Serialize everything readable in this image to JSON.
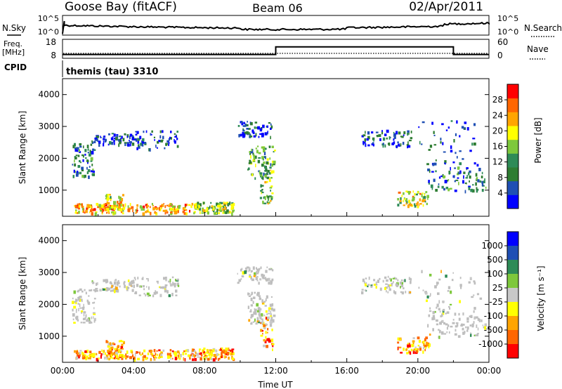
{
  "header": {
    "station": "Goose Bay (fitACF)",
    "beam": "Beam 06",
    "date": "02/Apr/2011"
  },
  "strips": {
    "nsky": {
      "label": "N.Sky",
      "right_label": "N.Search",
      "left_ticks": [
        "10^5",
        "10^0"
      ],
      "right_ticks": [
        "10^5",
        "10^0"
      ]
    },
    "freq": {
      "label": "Freq.",
      "unit": "[MHz]",
      "right_label": "Nave",
      "left_ticks": [
        "18",
        "8"
      ],
      "right_ticks": [
        "60",
        "0"
      ]
    },
    "cpid": {
      "label": "CPID",
      "value": "themis (tau) 3310"
    }
  },
  "colors": {
    "power_scale": [
      "#0000ff",
      "#1f4fb4",
      "#2e7d32",
      "#2e8b57",
      "#7ec83c",
      "#ffff00",
      "#ffa500",
      "#ff6600",
      "#ff0000"
    ],
    "velocity_scale": [
      "#0000ff",
      "#1f4fb4",
      "#2e8b57",
      "#7ec83c",
      "#c8c8c8",
      "#ffff00",
      "#ffa500",
      "#ff6600",
      "#ff0000"
    ],
    "ground_scatter": "#bebebe"
  },
  "chart_data": [
    {
      "type": "heatmap",
      "name": "power",
      "ylabel": "Slant Range [km]",
      "yticks": [
        1000,
        2000,
        3000,
        4000
      ],
      "ylim": [
        180,
        4500
      ],
      "xlim": [
        "00:00",
        "24:00"
      ],
      "colorbar_label": "Power [dB]",
      "colorbar_ticks": [
        4,
        8,
        12,
        16,
        20,
        24,
        28
      ],
      "colorbar_range": [
        0,
        32
      ]
    },
    {
      "type": "heatmap",
      "name": "velocity",
      "ylabel": "Slant Range [km]",
      "yticks": [
        1000,
        2000,
        3000,
        4000
      ],
      "ylim": [
        180,
        4500
      ],
      "xlim": [
        "00:00",
        "24:00"
      ],
      "xticks": [
        "00:00",
        "04:00",
        "08:00",
        "12:00",
        "16:00",
        "20:00",
        "00:00"
      ],
      "xlabel": "Time UT",
      "colorbar_label": "Velocity [m s⁻¹]",
      "colorbar_ticks": [
        1000,
        500,
        100,
        25,
        -25,
        -100,
        -500,
        -1000
      ]
    }
  ],
  "frequency_trace": [
    {
      "t": 0,
      "freq": 10
    },
    {
      "t": 12,
      "freq": 10
    },
    {
      "t": 12,
      "freq": 14
    },
    {
      "t": 22,
      "freq": 14
    },
    {
      "t": 22,
      "freq": 10
    },
    {
      "t": 24,
      "freq": 10
    }
  ]
}
